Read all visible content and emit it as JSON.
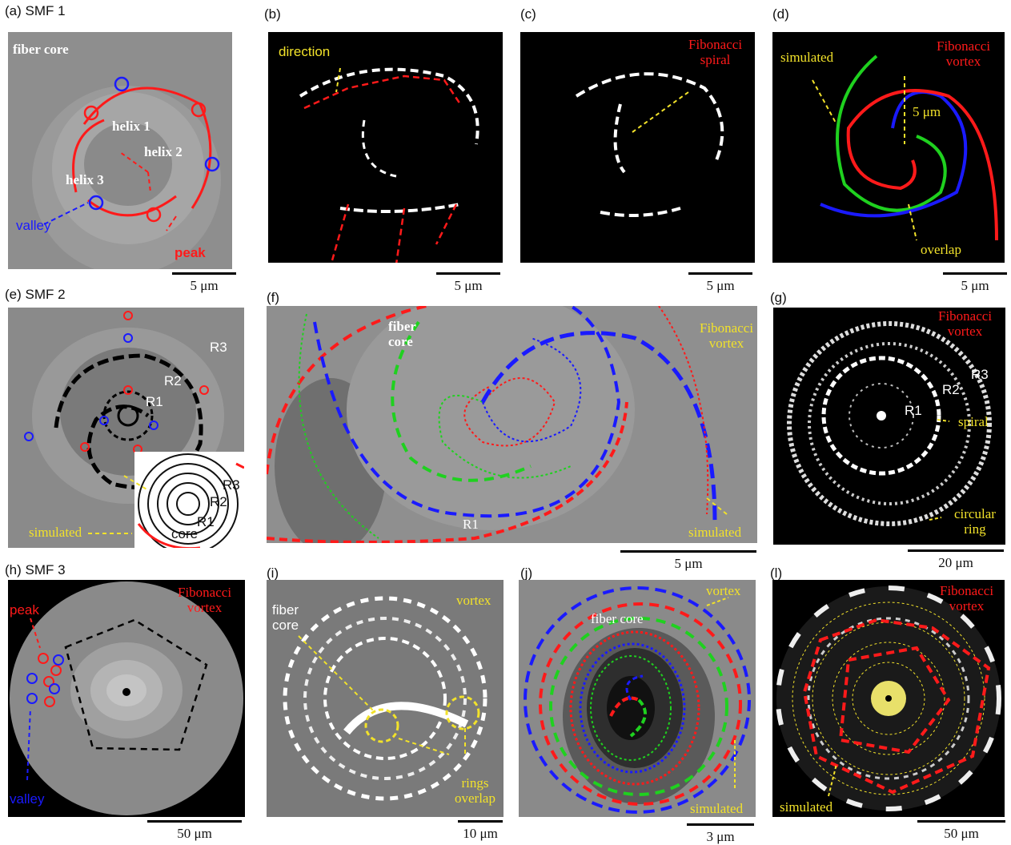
{
  "colors": {
    "red": "#ff1a1a",
    "blue": "#1a1aff",
    "green": "#1fd11f",
    "yellow": "#f2e22a",
    "sem_gray": "#8a8a8a",
    "background_black": "#000000"
  },
  "panels": {
    "a": {
      "label": "(a) SMF 1",
      "scale": "5 μm",
      "fiber_core": "fiber core",
      "helix1": "helix 1",
      "helix2": "helix 2",
      "helix3": "helix 3",
      "valley": "valley",
      "peak": "peak"
    },
    "b": {
      "label": "(b)",
      "scale": "5 μm",
      "direction": "direction"
    },
    "c": {
      "label": "(c)",
      "scale": "5 μm",
      "title_line1": "Fibonacci",
      "title_line2": "spiral"
    },
    "d": {
      "label": "(d)",
      "scale": "5 μm",
      "title_line1": "Fibonacci",
      "title_line2": "vortex",
      "simulated": "simulated",
      "distance": "5 μm",
      "overlap": "overlap"
    },
    "e": {
      "label": "(e) SMF 2",
      "r3": "R3",
      "r2": "R2",
      "r1": "R1",
      "inset_r3": "R3",
      "inset_r2": "R2",
      "inset_r1": "R1",
      "inset_core": "core",
      "simulated": "simulated"
    },
    "f": {
      "label": "(f)",
      "scale": "5 μm",
      "fiber_line1": "fiber",
      "fiber_line2": "core",
      "title_line1": "Fibonacci",
      "title_line2": "vortex",
      "r1": "R1",
      "simulated": "simulated"
    },
    "g": {
      "label": "(g)",
      "scale": "20 μm",
      "title_line1": "Fibonacci",
      "title_line2": "vortex",
      "r3": "R3",
      "r2": "R2",
      "r1": "R1",
      "spiral": "spiral",
      "ring_line1": "circular",
      "ring_line2": "ring"
    },
    "h": {
      "label": "(h) SMF 3",
      "scale": "50 μm",
      "peak": "peak",
      "valley": "valley",
      "title_line1": "Fibonacci",
      "title_line2": "vortex"
    },
    "i": {
      "label": "(i)",
      "scale": "10 μm",
      "fiber_line1": "fiber",
      "fiber_line2": "core",
      "vortex": "vortex",
      "rings_line1": "rings",
      "rings_line2": "overlap"
    },
    "j": {
      "label": "(j)",
      "scale": "3 μm",
      "fiber_core": "fiber core",
      "vortex": "vortex",
      "simulated": "simulated"
    },
    "l": {
      "label": "(l)",
      "scale": "50 μm",
      "title_line1": "Fibonacci",
      "title_line2": "vortex",
      "simulated": "simulated"
    }
  }
}
